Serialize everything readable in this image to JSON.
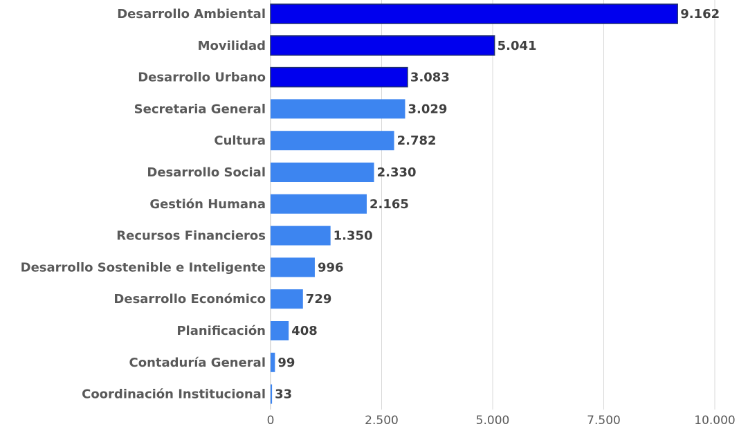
{
  "chart_data": {
    "type": "bar",
    "orientation": "horizontal",
    "categories": [
      "Desarrollo Ambiental",
      "Movilidad",
      "Desarrollo Urbano",
      "Secretaria General",
      "Cultura",
      "Desarrollo Social",
      "Gestión Humana",
      "Recursos Financieros",
      "Desarrollo Sostenible e Inteligente",
      "Desarrollo Económico",
      "Planificación",
      "Contaduría General",
      "Coordinación Institucional"
    ],
    "values": [
      9162,
      5041,
      3083,
      3029,
      2782,
      2330,
      2165,
      1350,
      996,
      729,
      408,
      99,
      33
    ],
    "value_labels": [
      "9.162",
      "5.041",
      "3.083",
      "3.029",
      "2.782",
      "2.330",
      "2.165",
      "1.350",
      "996",
      "729",
      "408",
      "99",
      "33"
    ],
    "xlim": [
      0,
      10000
    ],
    "x_ticks": [
      0,
      2500,
      5000,
      7500,
      10000
    ],
    "x_tick_labels": [
      "0",
      "2.500",
      "5.000",
      "7.500",
      "10.000"
    ],
    "grid": true,
    "colors": {
      "highlight": "#0000ee",
      "highlight_border": "#1f2f6f",
      "default": "#3d85f0"
    },
    "highlight_top_n": 3,
    "title": "",
    "xlabel": "",
    "ylabel": ""
  }
}
